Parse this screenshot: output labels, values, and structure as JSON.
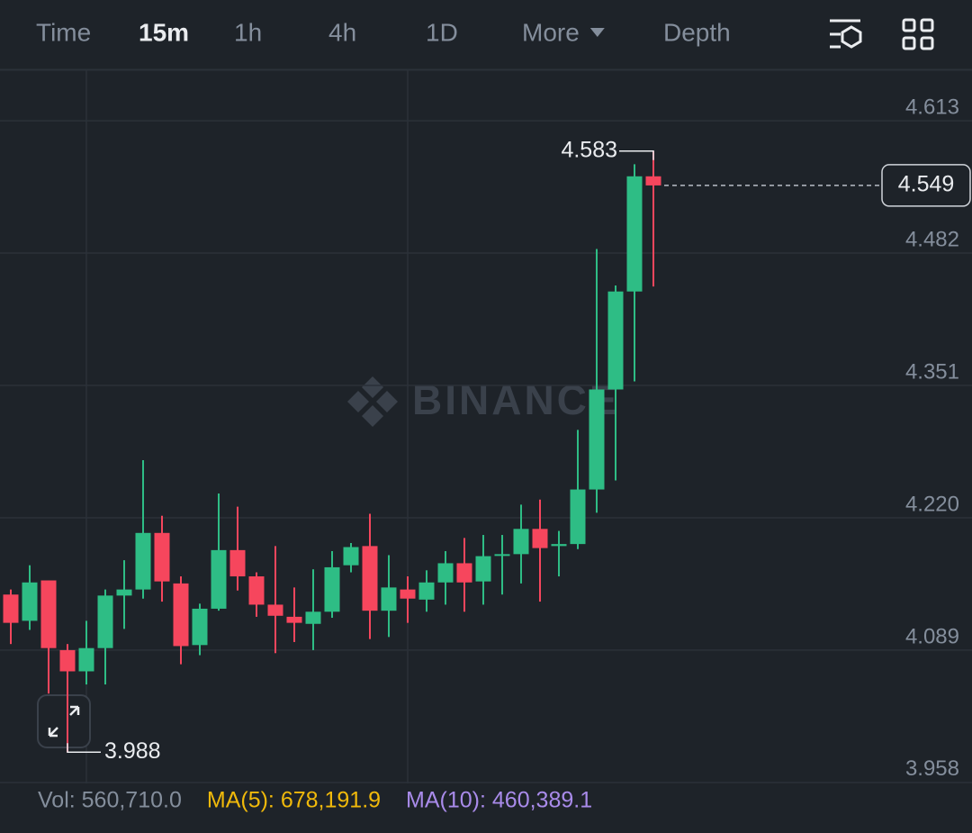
{
  "tabs": [
    "Time",
    "15m",
    "1h",
    "4h",
    "1D",
    "More",
    "Depth"
  ],
  "active_tab": 1,
  "watermark": "BINANCE",
  "indicators": [
    {
      "text": "Vol: 560,710.0",
      "color": "#848e9c"
    },
    {
      "text": "MA(5): 678,191.9",
      "color": "#f0b90b"
    },
    {
      "text": "MA(10): 460,389.1",
      "color": "#a98bea"
    }
  ],
  "chart_data": {
    "type": "candlestick",
    "up_color": "#2ebd85",
    "down_color": "#f6465d",
    "grid": true,
    "ylim": [
      3.957,
      4.663
    ],
    "yticks": [
      4.613,
      4.482,
      4.351,
      {
        "value": 4.22,
        "label": "4.220"
      },
      4.089,
      3.958
    ],
    "open": [
      4.144,
      4.118,
      4.158,
      4.089,
      4.068,
      4.091,
      4.143,
      4.149,
      4.205,
      4.155,
      4.094,
      4.13,
      4.188,
      4.162,
      4.134,
      4.122,
      4.115,
      4.127,
      4.173,
      4.192,
      4.128,
      4.149,
      4.139,
      4.156,
      4.175,
      4.157,
      4.183,
      4.184,
      4.209,
      4.192,
      4.194,
      4.248,
      4.347,
      4.444,
      4.558
    ],
    "high": [
      4.149,
      4.173,
      4.158,
      4.095,
      4.118,
      4.149,
      4.178,
      4.277,
      4.222,
      4.162,
      4.135,
      4.244,
      4.231,
      4.166,
      4.192,
      4.151,
      4.169,
      4.187,
      4.195,
      4.224,
      4.183,
      4.162,
      4.168,
      4.187,
      4.2,
      4.203,
      4.203,
      4.233,
      4.238,
      4.207,
      4.307,
      4.486,
      4.45,
      4.57,
      4.583
    ],
    "low": [
      4.095,
      4.109,
      4.046,
      3.988,
      4.055,
      4.055,
      4.11,
      4.14,
      4.137,
      4.075,
      4.084,
      4.128,
      4.148,
      4.122,
      4.086,
      4.097,
      4.089,
      4.121,
      4.166,
      4.1,
      4.102,
      4.116,
      4.127,
      4.134,
      4.127,
      4.134,
      4.144,
      4.155,
      4.137,
      4.162,
      4.189,
      4.225,
      4.257,
      4.355,
      4.449
    ],
    "close": [
      4.116,
      4.156,
      4.091,
      4.068,
      4.091,
      4.143,
      4.149,
      4.205,
      4.157,
      4.093,
      4.13,
      4.188,
      4.162,
      4.134,
      4.123,
      4.116,
      4.127,
      4.171,
      4.191,
      4.128,
      4.151,
      4.14,
      4.156,
      4.175,
      4.156,
      4.182,
      4.184,
      4.209,
      4.19,
      4.194,
      4.248,
      4.347,
      4.444,
      4.558,
      4.549
    ],
    "annotations": {
      "high": 4.583,
      "low": 3.988,
      "last": 4.549
    }
  }
}
